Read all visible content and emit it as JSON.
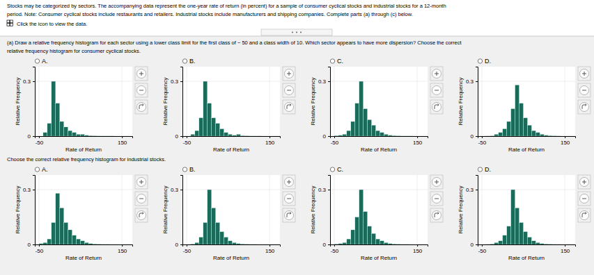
{
  "title": [
    "Stocks may be categorized by sectors. The accompanying data represent the one-year rate of return (in percent) for a sample of consumer cyclical stocks and industrial stocks for a 12-month",
    "period. Note: Consumer cyclical stocks include restaurants and retailers. Industrial stocks include manufacturers and shipping companies. Complete parts (a) through (c) below."
  ],
  "annotations": [
    "Click the icon to view the data.",
    "(a) Draw a relative frequency histogram for each sector using a lower class limit for the first class of − 50 and a class width of 10. Which sector appears to have more dispersion? Choose the correct",
    "relative frequency histogram for consumer cyclical stocks.",
    "Choose the correct relative frequency histogram for industrial stocks."
  ],
  "chart_data": [
    {
      "type": "histogram",
      "title": "A.",
      "xlabel": "Rate of Return",
      "ylabel": "Relative Frequency",
      "color": "#1a6b5a",
      "bins": [
        -50,
        -40,
        -30,
        -20,
        -10,
        0,
        10,
        20,
        30,
        40,
        50,
        60,
        70,
        80,
        90,
        100,
        110,
        120,
        130,
        140,
        150
      ],
      "values": [
        0.0,
        0.02,
        0.07,
        0.3,
        0.18,
        0.08,
        0.05,
        0.03,
        0.02,
        0.01,
        0.01,
        0.005,
        0.003,
        0.002,
        0.001,
        0.001,
        0.001,
        0.001,
        0.0,
        0.0
      ],
      "xlim": [
        -60,
        175
      ],
      "ylim": [
        0,
        0.38
      ],
      "xticks": [
        -50,
        150
      ],
      "yticks": [
        0,
        0.3
      ],
      "grid": true
    },
    {
      "type": "histogram",
      "title": "B.",
      "xlabel": "Rate of Return",
      "ylabel": "Relative Frequency",
      "color": "#1a6b5a",
      "bins": [
        -50,
        -40,
        -30,
        -20,
        -10,
        0,
        10,
        20,
        30,
        40,
        50,
        60,
        70,
        80,
        90,
        100,
        110,
        120,
        130,
        140,
        150
      ],
      "values": [
        0.0,
        0.01,
        0.03,
        0.1,
        0.3,
        0.18,
        0.1,
        0.07,
        0.04,
        0.02,
        0.01,
        0.005,
        0.01,
        0.003,
        0.002,
        0.001,
        0.001,
        0.001,
        0.0,
        0.0
      ],
      "xlim": [
        -60,
        175
      ],
      "ylim": [
        0,
        0.38
      ],
      "xticks": [
        -50,
        150
      ],
      "yticks": [
        0,
        0.3
      ],
      "grid": true
    },
    {
      "type": "histogram",
      "title": "C.",
      "xlabel": "Rate of Return",
      "ylabel": "Relative Frequency",
      "color": "#1a6b5a",
      "bins": [
        -50,
        -40,
        -30,
        -20,
        -10,
        0,
        10,
        20,
        30,
        40,
        50,
        60,
        70,
        80,
        90,
        100,
        110,
        120,
        130,
        140,
        150
      ],
      "values": [
        0.003,
        0.005,
        0.01,
        0.03,
        0.08,
        0.18,
        0.3,
        0.15,
        0.09,
        0.06,
        0.03,
        0.02,
        0.01,
        0.005,
        0.003,
        0.002,
        0.001,
        0.001,
        0.001,
        0.0
      ],
      "xlim": [
        -60,
        175
      ],
      "ylim": [
        0,
        0.38
      ],
      "xticks": [
        -50,
        150
      ],
      "yticks": [
        0,
        0.3
      ],
      "grid": true
    },
    {
      "type": "histogram",
      "title": "D.",
      "xlabel": "Rate of Return",
      "ylabel": "Relative Frequency",
      "color": "#1a6b5a",
      "bins": [
        -50,
        -40,
        -30,
        -20,
        -10,
        0,
        10,
        20,
        30,
        40,
        50,
        60,
        70,
        80,
        90,
        100,
        110,
        120,
        130,
        140,
        150
      ],
      "values": [
        0.0,
        0.001,
        0.002,
        0.01,
        0.02,
        0.04,
        0.08,
        0.15,
        0.28,
        0.18,
        0.1,
        0.06,
        0.03,
        0.02,
        0.01,
        0.005,
        0.003,
        0.002,
        0.001,
        0.0
      ],
      "xlim": [
        -60,
        175
      ],
      "ylim": [
        0,
        0.38
      ],
      "xticks": [
        -50,
        150
      ],
      "yticks": [
        0,
        0.3
      ],
      "grid": true
    },
    {
      "type": "histogram",
      "title": "A.",
      "xlabel": "Rate of Return",
      "ylabel": "Relative Frequency",
      "color": "#1a6b5a",
      "bins": [
        -50,
        -40,
        -30,
        -20,
        -10,
        0,
        10,
        20,
        30,
        40,
        50,
        60,
        70,
        80,
        90,
        100,
        110,
        120,
        130,
        140,
        150
      ],
      "values": [
        0.005,
        0.01,
        0.03,
        0.12,
        0.28,
        0.2,
        0.12,
        0.08,
        0.05,
        0.03,
        0.02,
        0.01,
        0.005,
        0.003,
        0.002,
        0.001,
        0.001,
        0.0,
        0.0,
        0.0
      ],
      "xlim": [
        -60,
        175
      ],
      "ylim": [
        0,
        0.38
      ],
      "xticks": [
        -50,
        150
      ],
      "yticks": [
        0,
        0.3
      ],
      "grid": true
    },
    {
      "type": "histogram",
      "title": "B.",
      "xlabel": "Rate of Return",
      "ylabel": "Relative Frequency",
      "color": "#1a6b5a",
      "bins": [
        -50,
        -40,
        -30,
        -20,
        -10,
        0,
        10,
        20,
        30,
        40,
        50,
        60,
        70,
        80,
        90,
        100,
        110,
        120,
        130,
        140,
        150
      ],
      "values": [
        0.0,
        0.003,
        0.01,
        0.04,
        0.12,
        0.3,
        0.2,
        0.12,
        0.07,
        0.04,
        0.02,
        0.01,
        0.005,
        0.003,
        0.002,
        0.001,
        0.001,
        0.0,
        0.0,
        0.0
      ],
      "xlim": [
        -60,
        175
      ],
      "ylim": [
        0,
        0.38
      ],
      "xticks": [
        -50,
        150
      ],
      "yticks": [
        0,
        0.3
      ],
      "grid": true
    },
    {
      "type": "histogram",
      "title": "C.",
      "xlabel": "Rate of Return",
      "ylabel": "Relative Frequency",
      "color": "#1a6b5a",
      "bins": [
        -50,
        -40,
        -30,
        -20,
        -10,
        0,
        10,
        20,
        30,
        40,
        50,
        60,
        70,
        80,
        90,
        100,
        110,
        120,
        130,
        140,
        150
      ],
      "values": [
        0.003,
        0.005,
        0.01,
        0.03,
        0.08,
        0.15,
        0.3,
        0.18,
        0.1,
        0.06,
        0.03,
        0.02,
        0.01,
        0.005,
        0.003,
        0.002,
        0.001,
        0.001,
        0.0,
        0.0
      ],
      "xlim": [
        -60,
        175
      ],
      "ylim": [
        0,
        0.38
      ],
      "xticks": [
        -50,
        150
      ],
      "yticks": [
        0,
        0.3
      ],
      "grid": true
    },
    {
      "type": "histogram",
      "title": "D.",
      "xlabel": "Rate of Return",
      "ylabel": "Relative Frequency",
      "color": "#1a6b5a",
      "bins": [
        -50,
        -40,
        -30,
        -20,
        -10,
        0,
        10,
        20,
        30,
        40,
        50,
        60,
        70,
        80,
        90,
        100,
        110,
        120,
        130,
        140,
        150
      ],
      "values": [
        0.0,
        0.001,
        0.003,
        0.01,
        0.02,
        0.05,
        0.1,
        0.3,
        0.2,
        0.12,
        0.07,
        0.04,
        0.02,
        0.01,
        0.005,
        0.003,
        0.002,
        0.001,
        0.001,
        0.0
      ],
      "xlim": [
        -60,
        175
      ],
      "ylim": [
        0,
        0.38
      ],
      "xticks": [
        -50,
        150
      ],
      "yticks": [
        0,
        0.3
      ],
      "grid": true
    }
  ]
}
